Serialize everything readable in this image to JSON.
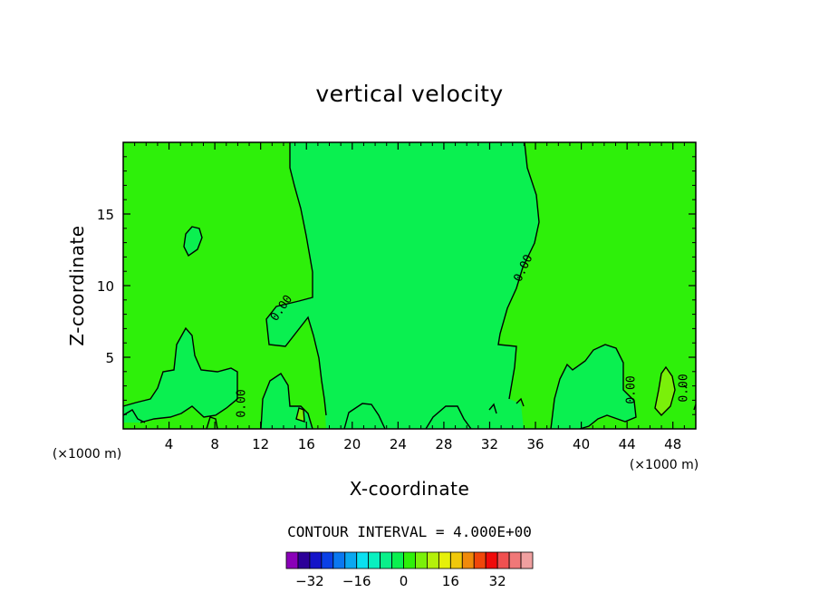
{
  "chart_data": {
    "type": "heatmap",
    "title": "vertical velocity",
    "xlabel": "X-coordinate",
    "ylabel": "Z-coordinate",
    "x_unit_left": "(×1000 m)",
    "x_unit_right": "(×1000 m)",
    "xlim": [
      0,
      50
    ],
    "ylim": [
      0,
      20
    ],
    "x_ticks": [
      4,
      8,
      12,
      16,
      20,
      24,
      28,
      32,
      36,
      40,
      44,
      48
    ],
    "y_ticks": [
      5,
      10,
      15
    ],
    "contour_interval_text": "CONTOUR INTERVAL = 4.000E+00",
    "contour_labels": [
      "0.00",
      "0.00",
      "0.00",
      "0.00",
      "0.00"
    ],
    "colorbar": {
      "colors": [
        "#8a00b8",
        "#2c0098",
        "#1414c8",
        "#0a40e6",
        "#0a78f0",
        "#0aa8f0",
        "#0ae0f0",
        "#0af0c0",
        "#0af08a",
        "#0af050",
        "#2ef00a",
        "#7af00a",
        "#b4f00a",
        "#e6f00a",
        "#f0c80a",
        "#f08a0a",
        "#f0460a",
        "#f00a0a",
        "#f05050",
        "#f07878",
        "#f0a0a0"
      ],
      "tick_values": [
        -32,
        -16,
        0,
        16,
        32
      ],
      "tick_labels": [
        "−32",
        "−16",
        "0",
        "16",
        "32"
      ]
    },
    "field_colors": {
      "negative_region": "#2ef00a",
      "positive_region": "#0af050",
      "weak_positive_patch": "#7af00a"
    }
  }
}
